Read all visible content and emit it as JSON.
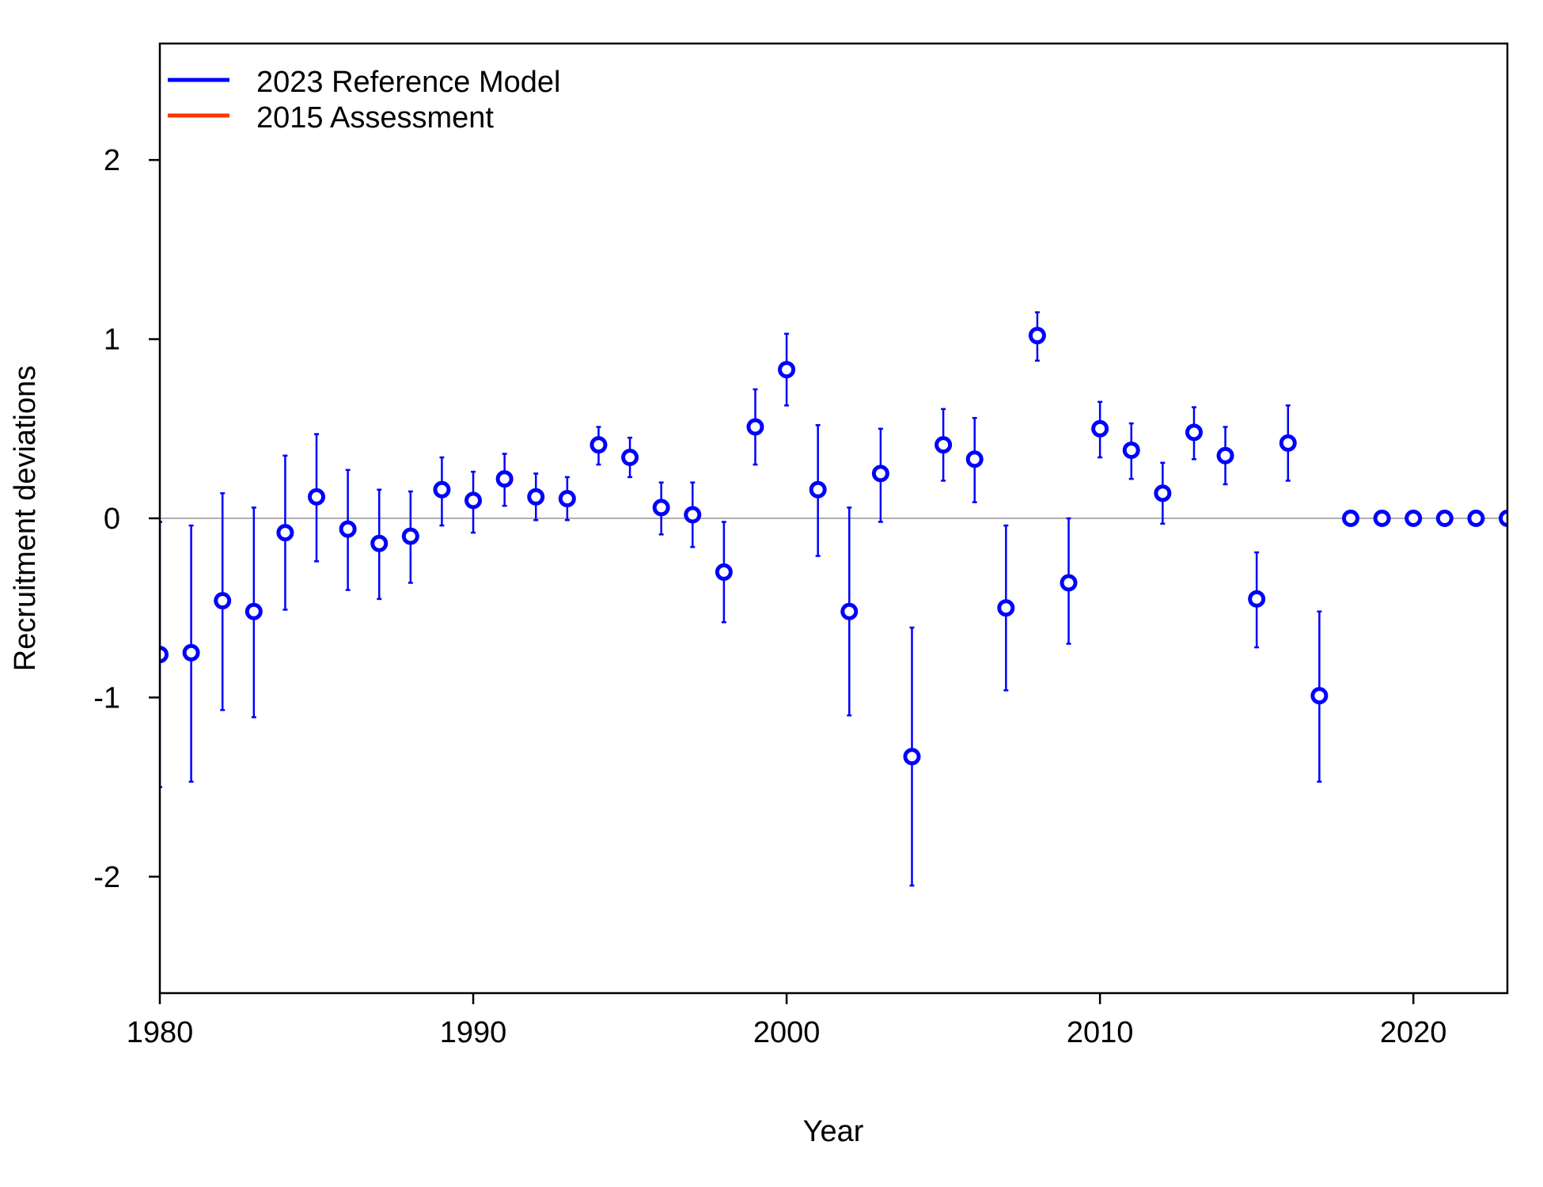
{
  "chart_data": {
    "type": "scatter",
    "title": "",
    "xlabel": "Year",
    "ylabel": "Recruitment deviations",
    "xlim": [
      1980,
      2023
    ],
    "ylim": [
      -2.65,
      2.65
    ],
    "x_ticks": [
      1980,
      1990,
      2000,
      2010,
      2020
    ],
    "x_tick_labels": [
      "1980",
      "1990",
      "2000",
      "2010",
      "2020"
    ],
    "y_ticks": [
      -2,
      -1,
      0,
      1,
      2
    ],
    "y_tick_labels": [
      "-2",
      "-1",
      "0",
      "1",
      "2"
    ],
    "reference_line": 0,
    "grid": false,
    "legend_position": "top-left",
    "legend": [
      {
        "label": "2023 Reference Model",
        "color": "#0000ff"
      },
      {
        "label": "2015 Assessment",
        "color": "#ff3300"
      }
    ],
    "series": [
      {
        "name": "2023 Reference Model",
        "color": "#0000ff",
        "points": [
          {
            "x": 1980,
            "y": -0.76,
            "lo": -1.5,
            "hi": -0.02
          },
          {
            "x": 1981,
            "y": -0.75,
            "lo": -1.47,
            "hi": -0.04
          },
          {
            "x": 1982,
            "y": -0.46,
            "lo": -1.07,
            "hi": 0.14
          },
          {
            "x": 1983,
            "y": -0.52,
            "lo": -1.11,
            "hi": 0.06
          },
          {
            "x": 1984,
            "y": -0.08,
            "lo": -0.51,
            "hi": 0.35
          },
          {
            "x": 1985,
            "y": 0.12,
            "lo": -0.24,
            "hi": 0.47
          },
          {
            "x": 1986,
            "y": -0.06,
            "lo": -0.4,
            "hi": 0.27
          },
          {
            "x": 1987,
            "y": -0.14,
            "lo": -0.45,
            "hi": 0.16
          },
          {
            "x": 1988,
            "y": -0.1,
            "lo": -0.36,
            "hi": 0.15
          },
          {
            "x": 1989,
            "y": 0.16,
            "lo": -0.04,
            "hi": 0.34
          },
          {
            "x": 1990,
            "y": 0.1,
            "lo": -0.08,
            "hi": 0.26
          },
          {
            "x": 1991,
            "y": 0.22,
            "lo": 0.07,
            "hi": 0.36
          },
          {
            "x": 1992,
            "y": 0.12,
            "lo": -0.01,
            "hi": 0.25
          },
          {
            "x": 1993,
            "y": 0.11,
            "lo": -0.01,
            "hi": 0.23
          },
          {
            "x": 1994,
            "y": 0.41,
            "lo": 0.3,
            "hi": 0.51
          },
          {
            "x": 1995,
            "y": 0.34,
            "lo": 0.23,
            "hi": 0.45
          },
          {
            "x": 1996,
            "y": 0.06,
            "lo": -0.09,
            "hi": 0.2
          },
          {
            "x": 1997,
            "y": 0.02,
            "lo": -0.16,
            "hi": 0.2
          },
          {
            "x": 1998,
            "y": -0.3,
            "lo": -0.58,
            "hi": -0.02
          },
          {
            "x": 1999,
            "y": 0.51,
            "lo": 0.3,
            "hi": 0.72
          },
          {
            "x": 2000,
            "y": 0.83,
            "lo": 0.63,
            "hi": 1.03
          },
          {
            "x": 2001,
            "y": 0.16,
            "lo": -0.21,
            "hi": 0.52
          },
          {
            "x": 2002,
            "y": -0.52,
            "lo": -1.1,
            "hi": 0.06
          },
          {
            "x": 2003,
            "y": 0.25,
            "lo": -0.02,
            "hi": 0.5
          },
          {
            "x": 2004,
            "y": -1.33,
            "lo": -2.05,
            "hi": -0.61
          },
          {
            "x": 2005,
            "y": 0.41,
            "lo": 0.21,
            "hi": 0.61
          },
          {
            "x": 2006,
            "y": 0.33,
            "lo": 0.09,
            "hi": 0.56
          },
          {
            "x": 2007,
            "y": -0.5,
            "lo": -0.96,
            "hi": -0.04
          },
          {
            "x": 2008,
            "y": 1.02,
            "lo": 0.88,
            "hi": 1.15
          },
          {
            "x": 2009,
            "y": -0.36,
            "lo": -0.7,
            "hi": 0.0
          },
          {
            "x": 2010,
            "y": 0.5,
            "lo": 0.34,
            "hi": 0.65
          },
          {
            "x": 2011,
            "y": 0.38,
            "lo": 0.22,
            "hi": 0.53
          },
          {
            "x": 2012,
            "y": 0.14,
            "lo": -0.03,
            "hi": 0.31
          },
          {
            "x": 2013,
            "y": 0.48,
            "lo": 0.33,
            "hi": 0.62
          },
          {
            "x": 2014,
            "y": 0.35,
            "lo": 0.19,
            "hi": 0.51
          },
          {
            "x": 2015,
            "y": -0.45,
            "lo": -0.72,
            "hi": -0.19
          },
          {
            "x": 2016,
            "y": 0.42,
            "lo": 0.21,
            "hi": 0.63
          },
          {
            "x": 2017,
            "y": -0.99,
            "lo": -1.47,
            "hi": -0.52
          },
          {
            "x": 2018,
            "y": 0.0
          },
          {
            "x": 2019,
            "y": 0.0
          },
          {
            "x": 2020,
            "y": 0.0
          },
          {
            "x": 2021,
            "y": 0.0
          },
          {
            "x": 2022,
            "y": 0.0
          },
          {
            "x": 2023,
            "y": 0.0
          }
        ]
      }
    ]
  }
}
